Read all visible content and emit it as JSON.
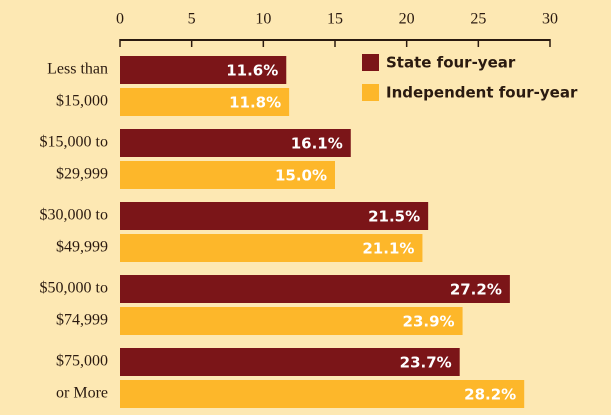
{
  "chart_data": {
    "type": "barh",
    "categories": [
      [
        "Less than",
        "$15,000"
      ],
      [
        "$15,000  to",
        "$29,999"
      ],
      [
        "$30,000 to",
        "$49,999"
      ],
      [
        "$50,000 to",
        "$74,999"
      ],
      [
        "$75,000",
        "or More"
      ]
    ],
    "series": [
      {
        "name": "State four-year",
        "color": "#7b1518",
        "values": [
          11.6,
          16.1,
          21.5,
          27.2,
          23.7
        ],
        "value_labels": [
          "11.6%",
          "16.1%",
          "21.5%",
          "27.2%",
          "23.7%"
        ]
      },
      {
        "name": "Independent four-year",
        "color": "#fdb72a",
        "values": [
          11.8,
          15.0,
          21.1,
          23.9,
          28.2
        ],
        "value_labels": [
          "11.8%",
          "15.0%",
          "21.1%",
          "23.9%",
          "28.2%"
        ]
      }
    ],
    "xlim": [
      0,
      30
    ],
    "xticks": [
      0,
      5,
      10,
      15,
      20,
      25,
      30
    ],
    "legend": "upper right"
  }
}
